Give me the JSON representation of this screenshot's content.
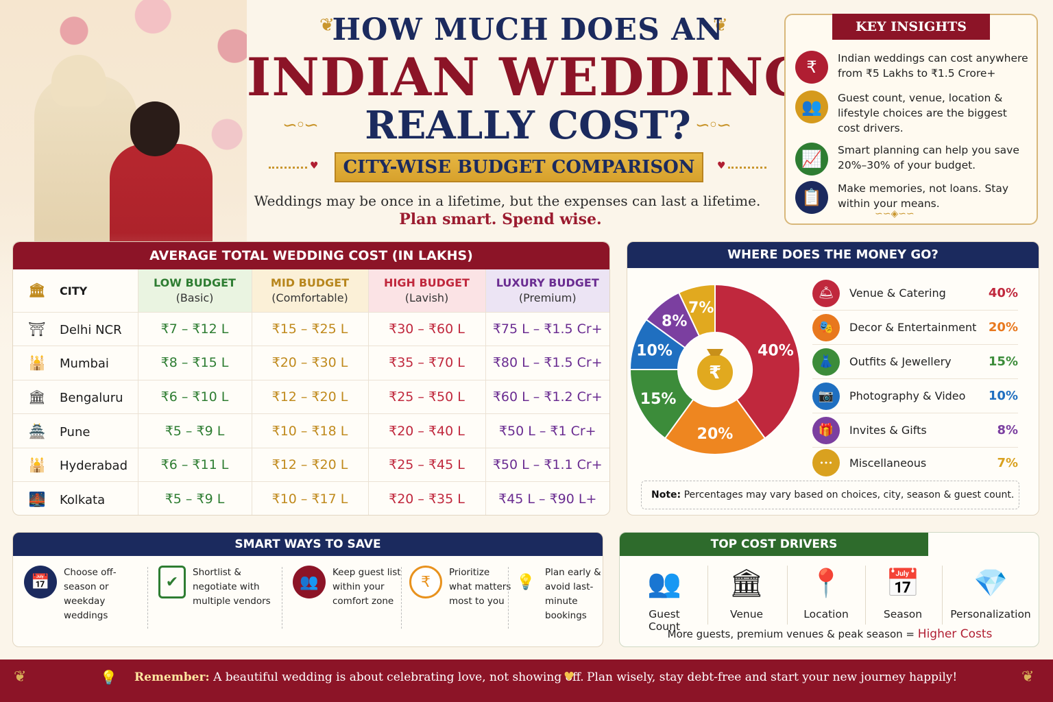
{
  "title": {
    "line1": "HOW MUCH DOES AN",
    "line2": "INDIAN WEDDING",
    "line3": "REALLY COST?",
    "ribbon": "CITY-WISE BUDGET COMPARISON",
    "tagline": "Weddings may be once in a lifetime, but the expenses can last a lifetime.",
    "tagline2": "Plan smart. Spend wise."
  },
  "insights": {
    "heading": "KEY INSIGHTS",
    "items": [
      {
        "icon": "rupee-icon",
        "glyph": "₹",
        "color": "#b01e32",
        "text": "Indian weddings can cost anywhere from ₹5 Lakhs to ₹1.5 Crore+"
      },
      {
        "icon": "people-icon",
        "glyph": "👥",
        "color": "#d59a1d",
        "text": "Guest count, venue, location & lifestyle choices are the biggest cost drivers."
      },
      {
        "icon": "growth-chart-icon",
        "glyph": "📈",
        "color": "#2e7d32",
        "text": "Smart planning can help you save 20%–30% of your budget."
      },
      {
        "icon": "checklist-icon",
        "glyph": "📋",
        "color": "#1b2a5e",
        "text": "Make memories, not loans. Stay within your means."
      }
    ]
  },
  "cost_table": {
    "heading": "AVERAGE TOTAL WEDDING COST (IN LAKHS)",
    "columns": [
      {
        "label": "CITY",
        "sub": ""
      },
      {
        "label": "LOW BUDGET",
        "sub": "(Basic)"
      },
      {
        "label": "MID BUDGET",
        "sub": "(Comfortable)"
      },
      {
        "label": "HIGH BUDGET",
        "sub": "(Lavish)"
      },
      {
        "label": "LUXURY BUDGET",
        "sub": "(Premium)"
      }
    ],
    "rows": [
      {
        "city": "Delhi NCR",
        "icon": "india-gate-icon",
        "low": "₹7 – ₹12 L",
        "mid": "₹15 – ₹25 L",
        "high": "₹30 – ₹60 L",
        "lux": "₹75 L – ₹1.5 Cr+"
      },
      {
        "city": "Mumbai",
        "icon": "gateway-of-india-icon",
        "low": "₹8 – ₹15 L",
        "mid": "₹20 – ₹30 L",
        "high": "₹35 – ₹70 L",
        "lux": "₹80 L – ₹1.5 Cr+"
      },
      {
        "city": "Bengaluru",
        "icon": "vidhana-soudha-icon",
        "low": "₹6 – ₹10 L",
        "mid": "₹12 – ₹20 L",
        "high": "₹25 – ₹50 L",
        "lux": "₹60 L – ₹1.2 Cr+"
      },
      {
        "city": "Pune",
        "icon": "shaniwar-wada-icon",
        "low": "₹5 – ₹9 L",
        "mid": "₹10 – ₹18 L",
        "high": "₹20 – ₹40 L",
        "lux": "₹50 L – ₹1 Cr+"
      },
      {
        "city": "Hyderabad",
        "icon": "charminar-icon",
        "low": "₹6 – ₹11 L",
        "mid": "₹12 – ₹20 L",
        "high": "₹25 – ₹45 L",
        "lux": "₹50 L – ₹1.1 Cr+"
      },
      {
        "city": "Kolkata",
        "icon": "howrah-bridge-icon",
        "low": "₹5 – ₹9 L",
        "mid": "₹10 – ₹17 L",
        "high": "₹20 – ₹35 L",
        "lux": "₹45 L – ₹90 L+"
      }
    ]
  },
  "money": {
    "heading": "WHERE DOES THE MONEY GO?",
    "center_icon": "money-bag-icon",
    "note_label": "Note:",
    "note_text": " Percentages may vary based on choices, city, season & guest count.",
    "legend": [
      {
        "label": "Venue & Catering",
        "value": "40%",
        "icon": "cloche-icon",
        "glyph": "🛎",
        "color": "#c0283d"
      },
      {
        "label": "Decor & Entertainment",
        "value": "20%",
        "icon": "stage-icon",
        "glyph": "🎭",
        "color": "#e8781e"
      },
      {
        "label": "Outfits & Jewellery",
        "value": "15%",
        "icon": "dress-icon",
        "glyph": "👗",
        "color": "#3c8c3a"
      },
      {
        "label": "Photography & Video",
        "value": "10%",
        "icon": "camera-icon",
        "glyph": "📷",
        "color": "#1f6fc0"
      },
      {
        "label": "Invites & Gifts",
        "value": "8%",
        "icon": "gift-icon",
        "glyph": "🎁",
        "color": "#7b3fa0"
      },
      {
        "label": "Miscellaneous",
        "value": "7%",
        "icon": "more-dots-icon",
        "glyph": "•••",
        "color": "#d9a11f"
      }
    ]
  },
  "chart_data": {
    "type": "pie",
    "categories": [
      "Venue & Catering",
      "Decor & Entertainment",
      "Outfits & Jewellery",
      "Photography & Video",
      "Invites & Gifts",
      "Miscellaneous"
    ],
    "values": [
      40,
      20,
      15,
      10,
      8,
      7
    ],
    "labels": [
      "40%",
      "20%",
      "15%",
      "10%",
      "8%",
      "7%"
    ],
    "colors": [
      "#c0283d",
      "#ee8620",
      "#3c8c3a",
      "#1f6fc0",
      "#7b3fa0",
      "#e1a91f"
    ]
  },
  "save": {
    "heading": "SMART WAYS TO SAVE",
    "items": [
      {
        "text": "Choose off-season or weekday weddings",
        "icon": "calendar-icon",
        "glyph": "📅",
        "color": "#1b2a5e"
      },
      {
        "text": "Shortlist & negotiate with multiple vendors",
        "icon": "clipboard-check-icon",
        "glyph": "📋",
        "color": "#2e7d32"
      },
      {
        "text": "Keep guest list within your comfort zone",
        "icon": "guests-icon",
        "glyph": "👥",
        "color": "#8c1427"
      },
      {
        "text": "Prioritize what matters most to you",
        "icon": "rupee-coin-icon",
        "glyph": "₹",
        "color": "#e8921e"
      },
      {
        "text": "Plan early & avoid last-minute bookings",
        "icon": "lightbulb-icon",
        "glyph": "💡",
        "color": "#d9a11f"
      }
    ]
  },
  "drivers": {
    "heading": "TOP COST DRIVERS",
    "items": [
      {
        "label": "Guest Count",
        "icon": "group-icon",
        "glyph": "👥"
      },
      {
        "label": "Venue",
        "icon": "building-icon",
        "glyph": "🏛"
      },
      {
        "label": "Location",
        "icon": "map-pin-icon",
        "glyph": "📍"
      },
      {
        "label": "Season",
        "icon": "calendar-icon",
        "glyph": "📅"
      },
      {
        "label": "Personalization",
        "icon": "diamond-icon",
        "glyph": "💎"
      }
    ],
    "note_prefix": "More guests, premium venues & peak season = ",
    "note_highlight": "Higher Costs"
  },
  "footer": {
    "remember_label": "Remember:",
    "remember_text": " A beautiful wedding is about celebrating love, not showing off.",
    "message2": "Plan wisely, stay debt-free and start your new journey happily!"
  }
}
